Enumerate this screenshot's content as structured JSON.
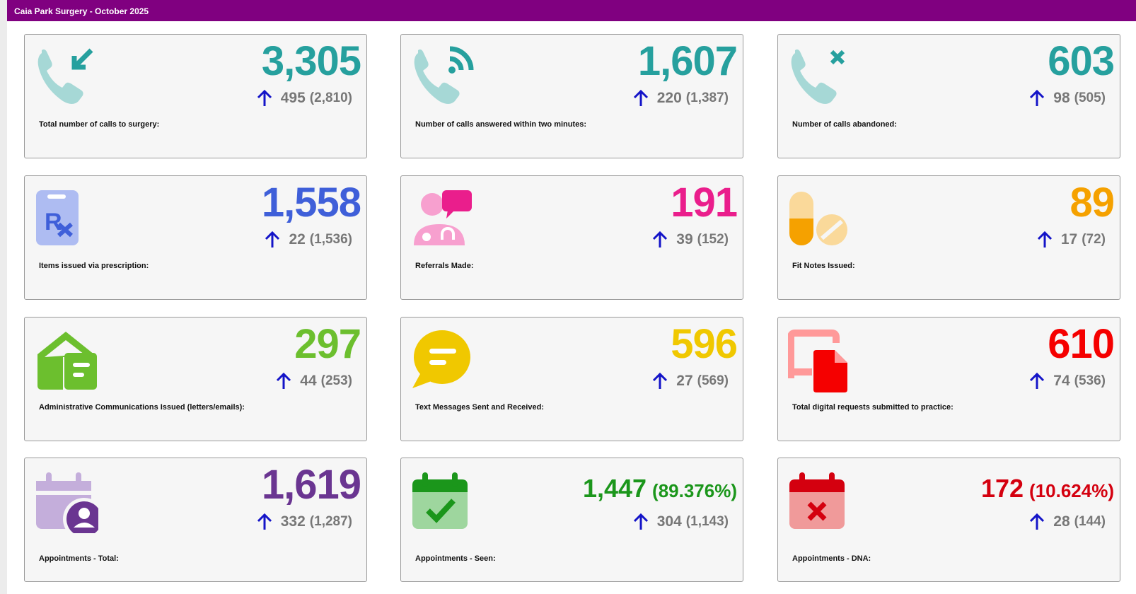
{
  "header": {
    "title": "Caia Park Surgery - October 2025"
  },
  "cards": [
    {
      "value": "3,305",
      "change": "495",
      "previous": "(2,810)",
      "label": "Total number of calls to surgery:",
      "color": "#26a09e"
    },
    {
      "value": "1,607",
      "change": "220",
      "previous": "(1,387)",
      "label": "Number of calls answered within two minutes:",
      "color": "#26a09e"
    },
    {
      "value": "603",
      "change": "98",
      "previous": "(505)",
      "label": "Number of calls abandoned:",
      "color": "#26a09e"
    },
    {
      "value": "1,558",
      "change": "22",
      "previous": "(1,536)",
      "label": "Items issued via prescription:",
      "color": "#3f5fd9"
    },
    {
      "value": "191",
      "change": "39",
      "previous": "(152)",
      "label": "Referrals Made:",
      "color": "#ea1e8c"
    },
    {
      "value": "89",
      "change": "17",
      "previous": "(72)",
      "label": "Fit Notes Issued:",
      "color": "#f5a100"
    },
    {
      "value": "297",
      "change": "44",
      "previous": "(253)",
      "label": "Administrative Communications Issued (letters/emails):",
      "color": "#6cbf2e"
    },
    {
      "value": "596",
      "change": "27",
      "previous": "(569)",
      "label": "Text Messages Sent and Received:",
      "color": "#f0c800"
    },
    {
      "value": "610",
      "change": "74",
      "previous": "(536)",
      "label": "Total digital requests submitted to practice:",
      "color": "#f50000"
    },
    {
      "value": "1,619",
      "change": "332",
      "previous": "(1,287)",
      "label": "Appointments - Total:",
      "color": "#6a3591"
    },
    {
      "value": "1,447",
      "percent": "(89.376%)",
      "change": "304",
      "previous": "(1,143)",
      "label": "Appointments - Seen:",
      "color": "#1b961b"
    },
    {
      "value": "172",
      "percent": "(10.624%)",
      "change": "28",
      "previous": "(144)",
      "label": "Appointments - DNA:",
      "color": "#d4000f"
    }
  ]
}
